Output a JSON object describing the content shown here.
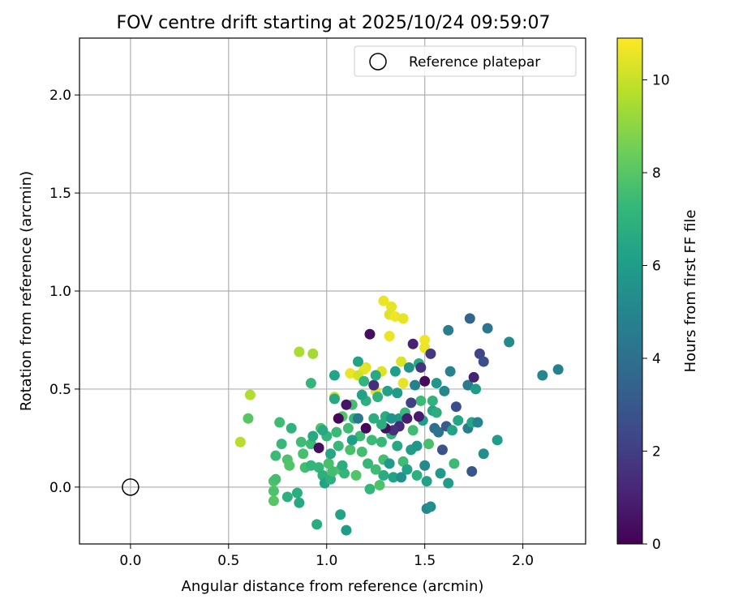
{
  "chart_data": {
    "type": "scatter",
    "title": "FOV centre drift starting at 2025/10/24 09:59:07",
    "xlabel": "Angular distance from reference (arcmin)",
    "ylabel": "Rotation from reference (arcmin)",
    "xlim": [
      -0.26,
      2.32
    ],
    "ylim": [
      -0.29,
      2.29
    ],
    "x_ticks": [
      0.0,
      0.5,
      1.0,
      1.5,
      2.0
    ],
    "x_tick_labels": [
      "0.0",
      "0.5",
      "1.0",
      "1.5",
      "2.0"
    ],
    "y_ticks": [
      0.0,
      0.5,
      1.0,
      1.5,
      2.0
    ],
    "y_tick_labels": [
      "0.0",
      "0.5",
      "1.0",
      "1.5",
      "2.0"
    ],
    "grid": true,
    "legend": {
      "position": "top-right",
      "entries": [
        {
          "label": "Reference platepar",
          "marker": "open-circle"
        }
      ]
    },
    "reference_point": {
      "x": 0.0,
      "y": 0.0,
      "label": "Reference platepar"
    },
    "colorbar": {
      "label": "Hours from first FF file",
      "colormap": "viridis",
      "range": [
        0,
        10.9
      ],
      "ticks": [
        0,
        2,
        4,
        6,
        8,
        10
      ],
      "tick_labels": [
        "0",
        "2",
        "4",
        "6",
        "8",
        "10"
      ],
      "stops": [
        "#440154",
        "#482878",
        "#3e4a89",
        "#31688e",
        "#26828e",
        "#1f9e89",
        "#35b779",
        "#6ece58",
        "#b5de2b",
        "#fde725"
      ]
    },
    "series": [
      {
        "name": "FOV centre drift",
        "points": [
          [
            1.29,
            0.95,
            10.6
          ],
          [
            1.33,
            0.92,
            10.5
          ],
          [
            1.32,
            0.88,
            10.4
          ],
          [
            1.35,
            0.87,
            10.7
          ],
          [
            1.39,
            0.86,
            10.5
          ],
          [
            1.32,
            0.77,
            10.6
          ],
          [
            1.5,
            0.75,
            10.7
          ],
          [
            1.5,
            0.71,
            10.6
          ],
          [
            1.38,
            0.64,
            10.3
          ],
          [
            1.2,
            0.61,
            10.4
          ],
          [
            1.19,
            0.6,
            10.5
          ],
          [
            1.12,
            0.58,
            10.6
          ],
          [
            1.16,
            0.57,
            10.2
          ],
          [
            1.28,
            0.59,
            10.4
          ],
          [
            1.39,
            0.53,
            10.5
          ],
          [
            1.25,
            0.49,
            10.3
          ],
          [
            1.04,
            0.46,
            10.1
          ],
          [
            0.86,
            0.69,
            9.5
          ],
          [
            0.93,
            0.68,
            9.4
          ],
          [
            0.61,
            0.47,
            9.6
          ],
          [
            0.56,
            0.23,
            9.7
          ],
          [
            0.6,
            0.35,
            8.0
          ],
          [
            0.73,
            0.03,
            7.9
          ],
          [
            0.73,
            -0.02,
            7.8
          ],
          [
            0.73,
            -0.07,
            8.0
          ],
          [
            0.74,
            0.04,
            7.6
          ],
          [
            0.74,
            0.16,
            7.4
          ],
          [
            0.76,
            0.33,
            7.5
          ],
          [
            0.77,
            0.22,
            7.3
          ],
          [
            0.8,
            0.14,
            7.8
          ],
          [
            0.8,
            -0.05,
            6.9
          ],
          [
            0.81,
            0.11,
            7.9
          ],
          [
            0.82,
            0.3,
            7.0
          ],
          [
            0.85,
            -0.03,
            6.8
          ],
          [
            0.86,
            -0.08,
            6.5
          ],
          [
            0.87,
            0.23,
            7.5
          ],
          [
            0.88,
            0.17,
            7.7
          ],
          [
            0.89,
            0.1,
            7.6
          ],
          [
            0.92,
            0.53,
            7.2
          ],
          [
            0.92,
            0.22,
            7.4
          ],
          [
            0.93,
            0.26,
            6.6
          ],
          [
            0.95,
            -0.19,
            6.7
          ],
          [
            0.96,
            0.1,
            7.2
          ],
          [
            0.97,
            0.3,
            7.8
          ],
          [
            0.98,
            0.06,
            6.9
          ],
          [
            0.99,
            0.02,
            6.3
          ],
          [
            1.0,
            0.26,
            7.1
          ],
          [
            1.01,
            0.12,
            7.7
          ],
          [
            1.02,
            0.04,
            6.9
          ],
          [
            1.03,
            0.08,
            7.6
          ],
          [
            1.04,
            0.57,
            6.4
          ],
          [
            1.04,
            0.45,
            6.5
          ],
          [
            1.05,
            0.28,
            7.4
          ],
          [
            1.06,
            0.21,
            7.3
          ],
          [
            1.07,
            0.09,
            7.8
          ],
          [
            1.07,
            -0.14,
            6.3
          ],
          [
            1.08,
            0.36,
            7.9
          ],
          [
            1.09,
            0.07,
            7.2
          ],
          [
            1.1,
            -0.22,
            6.0
          ],
          [
            1.11,
            0.3,
            7.5
          ],
          [
            1.12,
            0.19,
            7.7
          ],
          [
            1.13,
            0.42,
            7.6
          ],
          [
            1.14,
            0.35,
            7.1
          ],
          [
            1.15,
            0.06,
            7.9
          ],
          [
            1.16,
            0.64,
            6.3
          ],
          [
            1.17,
            0.26,
            7.4
          ],
          [
            1.18,
            0.18,
            7.6
          ],
          [
            1.19,
            0.54,
            7.1
          ],
          [
            1.2,
            0.44,
            6.9
          ],
          [
            1.21,
            0.12,
            7.3
          ],
          [
            1.22,
            -0.01,
            7.2
          ],
          [
            1.23,
            0.24,
            7.4
          ],
          [
            1.24,
            0.35,
            6.8
          ],
          [
            1.25,
            0.09,
            7.5
          ],
          [
            1.26,
            0.46,
            7.0
          ],
          [
            1.27,
            0.01,
            7.8
          ],
          [
            1.28,
            0.23,
            7.3
          ],
          [
            1.29,
            0.14,
            7.6
          ],
          [
            1.3,
            0.36,
            6.7
          ],
          [
            1.31,
            0.49,
            6.2
          ],
          [
            1.32,
            0.12,
            5.9
          ],
          [
            1.33,
            0.27,
            7.0
          ],
          [
            1.34,
            0.05,
            6.3
          ],
          [
            1.35,
            0.59,
            6.1
          ],
          [
            1.36,
            0.21,
            6.5
          ],
          [
            1.37,
            0.35,
            5.8
          ],
          [
            1.38,
            0.05,
            5.5
          ],
          [
            1.39,
            0.13,
            7.5
          ],
          [
            1.4,
            0.38,
            7.3
          ],
          [
            1.41,
            0.09,
            6.2
          ],
          [
            1.42,
            0.61,
            5.6
          ],
          [
            1.43,
            0.19,
            6.0
          ],
          [
            1.44,
            0.29,
            7.5
          ],
          [
            1.45,
            0.52,
            4.8
          ],
          [
            1.46,
            0.06,
            6.9
          ],
          [
            1.47,
            0.63,
            6.6
          ],
          [
            1.48,
            0.44,
            7.4
          ],
          [
            1.49,
            0.34,
            6.1
          ],
          [
            1.5,
            0.11,
            5.2
          ],
          [
            1.51,
            -0.11,
            5.0
          ],
          [
            1.51,
            0.03,
            6.2
          ],
          [
            1.52,
            0.22,
            7.7
          ],
          [
            1.53,
            0.68,
            1.8
          ],
          [
            1.53,
            -0.1,
            5.4
          ],
          [
            1.54,
            0.39,
            6.4
          ],
          [
            1.55,
            0.3,
            3.9
          ],
          [
            1.56,
            0.53,
            5.7
          ],
          [
            1.57,
            0.28,
            4.2
          ],
          [
            1.58,
            0.07,
            5.9
          ],
          [
            1.59,
            0.19,
            2.8
          ],
          [
            1.6,
            0.49,
            5.0
          ],
          [
            1.61,
            0.31,
            3.2
          ],
          [
            1.62,
            0.8,
            4.6
          ],
          [
            1.62,
            0.02,
            6.0
          ],
          [
            1.63,
            0.59,
            4.9
          ],
          [
            1.64,
            0.29,
            6.3
          ],
          [
            1.65,
            0.12,
            7.4
          ],
          [
            1.66,
            0.41,
            2.6
          ],
          [
            1.67,
            0.34,
            6.4
          ],
          [
            1.72,
            0.3,
            4.6
          ],
          [
            1.72,
            0.52,
            4.5
          ],
          [
            1.73,
            0.86,
            3.5
          ],
          [
            1.74,
            0.33,
            6.4
          ],
          [
            1.74,
            0.08,
            2.9
          ],
          [
            1.75,
            0.56,
            1.0
          ],
          [
            1.76,
            0.5,
            5.9
          ],
          [
            1.77,
            0.33,
            4.9
          ],
          [
            1.78,
            0.68,
            2.3
          ],
          [
            1.8,
            0.64,
            2.6
          ],
          [
            1.8,
            0.17,
            5.4
          ],
          [
            1.82,
            0.81,
            4.3
          ],
          [
            1.87,
            0.24,
            6.0
          ],
          [
            1.93,
            0.74,
            5.2
          ],
          [
            2.1,
            0.57,
            5.0
          ],
          [
            2.18,
            0.6,
            4.8
          ],
          [
            1.22,
            0.78,
            0.4
          ],
          [
            1.44,
            0.73,
            1.0
          ],
          [
            1.5,
            0.54,
            0.3
          ],
          [
            1.48,
            0.61,
            1.6
          ],
          [
            1.47,
            0.36,
            0.8
          ],
          [
            1.43,
            0.43,
            2.1
          ],
          [
            1.41,
            0.35,
            0.9
          ],
          [
            1.37,
            0.31,
            1.2
          ],
          [
            1.34,
            0.29,
            1.5
          ],
          [
            1.3,
            0.3,
            0.5
          ],
          [
            1.2,
            0.3,
            0.2
          ],
          [
            1.1,
            0.42,
            0.6
          ],
          [
            1.06,
            0.35,
            0.2
          ],
          [
            0.96,
            0.2,
            0.4
          ],
          [
            1.24,
            0.52,
            1.4
          ],
          [
            1.16,
            0.35,
            4.4
          ],
          [
            1.28,
            0.32,
            6.8
          ],
          [
            1.13,
            0.24,
            6.1
          ],
          [
            1.08,
            0.11,
            6.8
          ],
          [
            0.98,
            0.29,
            6.6
          ],
          [
            1.18,
            0.47,
            6.2
          ],
          [
            1.36,
            0.48,
            5.9
          ],
          [
            1.46,
            0.21,
            5.7
          ],
          [
            1.54,
            0.44,
            7.0
          ],
          [
            1.56,
            0.38,
            6.8
          ],
          [
            1.25,
            0.57,
            6.6
          ],
          [
            1.02,
            0.17,
            6.5
          ],
          [
            0.92,
            0.11,
            7.1
          ],
          [
            1.33,
            0.35,
            5.6
          ],
          [
            1.29,
            0.06,
            6.7
          ]
        ]
      }
    ]
  }
}
